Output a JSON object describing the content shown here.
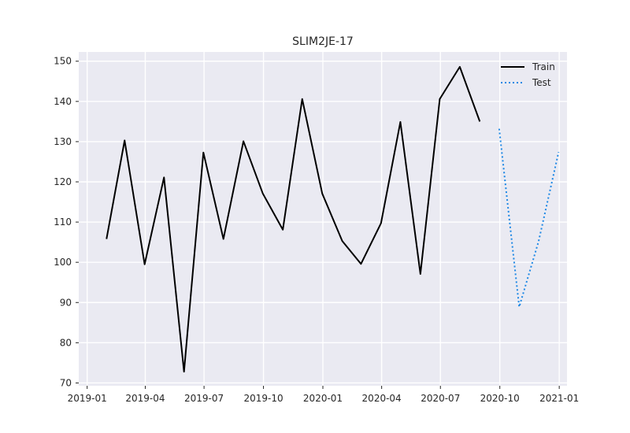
{
  "chart_data": {
    "type": "line",
    "title": "SLIM2JE-17",
    "xlabel": "",
    "ylabel": "",
    "x_axis": {
      "type": "date",
      "range": [
        "2018-12-19",
        "2021-01-13"
      ],
      "ticks": [
        "2019-01-01",
        "2019-04-01",
        "2019-07-01",
        "2019-10-01",
        "2020-01-01",
        "2020-04-01",
        "2020-07-01",
        "2020-10-01",
        "2021-01-01"
      ],
      "tick_labels": [
        "2019-01",
        "2019-04",
        "2019-07",
        "2019-10",
        "2020-01",
        "2020-04",
        "2020-07",
        "2020-10",
        "2021-01"
      ]
    },
    "y_axis": {
      "range": [
        69.3,
        152.3
      ],
      "ticks": [
        70,
        80,
        90,
        100,
        110,
        120,
        130,
        140,
        150
      ]
    },
    "grid": true,
    "legend": "top-right",
    "series": [
      {
        "name": "Train",
        "color": "#000000",
        "style": "solid",
        "points": [
          {
            "x": "2019-01-31",
            "y": 105.8
          },
          {
            "x": "2019-02-28",
            "y": 130.3
          },
          {
            "x": "2019-03-31",
            "y": 99.5
          },
          {
            "x": "2019-04-30",
            "y": 121.1
          },
          {
            "x": "2019-05-31",
            "y": 72.8
          },
          {
            "x": "2019-06-30",
            "y": 127.3
          },
          {
            "x": "2019-07-31",
            "y": 105.8
          },
          {
            "x": "2019-08-31",
            "y": 130.1
          },
          {
            "x": "2019-09-30",
            "y": 117.1
          },
          {
            "x": "2019-10-31",
            "y": 108.1
          },
          {
            "x": "2019-11-30",
            "y": 140.6
          },
          {
            "x": "2019-12-31",
            "y": 117.1
          },
          {
            "x": "2020-01-31",
            "y": 105.3
          },
          {
            "x": "2020-02-29",
            "y": 99.6
          },
          {
            "x": "2020-03-31",
            "y": 109.7
          },
          {
            "x": "2020-04-30",
            "y": 134.9
          },
          {
            "x": "2020-05-31",
            "y": 97.1
          },
          {
            "x": "2020-06-30",
            "y": 140.6
          },
          {
            "x": "2020-07-31",
            "y": 148.6
          },
          {
            "x": "2020-08-31",
            "y": 135.0
          }
        ]
      },
      {
        "name": "Test",
        "color": "#1e88e5",
        "style": "dotted",
        "points": [
          {
            "x": "2020-09-30",
            "y": 133.2
          },
          {
            "x": "2020-10-31",
            "y": 88.9
          },
          {
            "x": "2020-11-30",
            "y": 105.2
          },
          {
            "x": "2020-12-31",
            "y": 127.4
          }
        ]
      }
    ]
  }
}
